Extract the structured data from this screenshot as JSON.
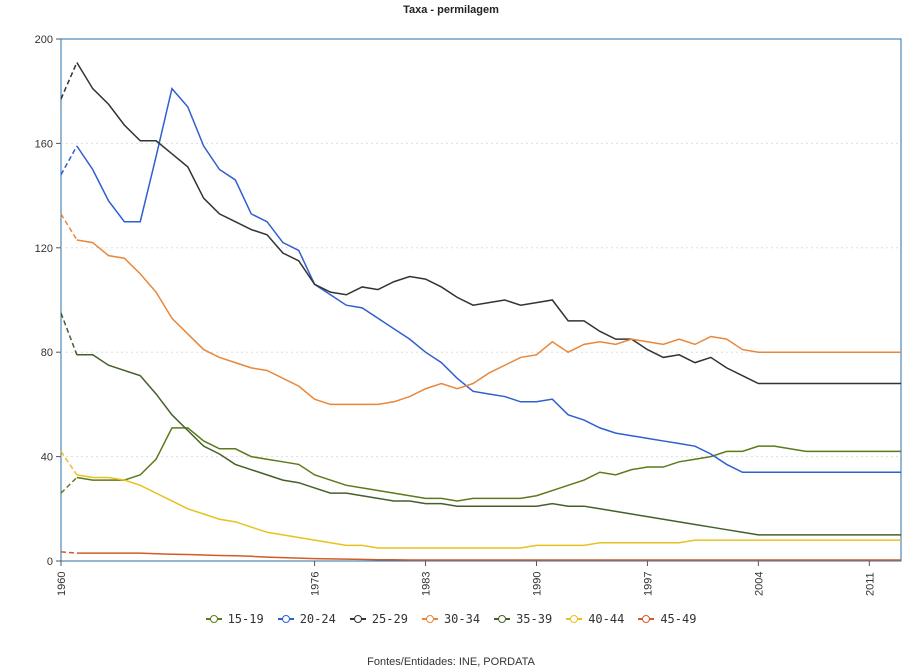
{
  "chart_data": {
    "type": "line",
    "title": "Taxa - permilagem",
    "source": "Fontes/Entidades: INE, PORDATA",
    "xlim": [
      1960,
      2013
    ],
    "ylim": [
      0,
      200
    ],
    "yticks": [
      0,
      40,
      80,
      120,
      160,
      200
    ],
    "xticks": [
      1960,
      1976,
      1983,
      1990,
      1997,
      2004,
      2011
    ],
    "xlabel": "",
    "ylabel": "",
    "grid": true,
    "legend_position": "bottom",
    "estimated_segment_end": 1961,
    "x": [
      1960,
      1961,
      1962,
      1963,
      1964,
      1965,
      1966,
      1967,
      1968,
      1969,
      1970,
      1971,
      1972,
      1973,
      1974,
      1975,
      1976,
      1977,
      1978,
      1979,
      1980,
      1981,
      1982,
      1983,
      1984,
      1985,
      1986,
      1987,
      1988,
      1989,
      1990,
      1991,
      1992,
      1993,
      1994,
      1995,
      1996,
      1997,
      1998,
      1999,
      2000,
      2001,
      2002,
      2003,
      2004,
      2005,
      2006,
      2007,
      2008,
      2009,
      2010,
      2011,
      2012,
      2013
    ],
    "series": [
      {
        "name": "15-19",
        "color": "#5c7a1a",
        "values": [
          26,
          32,
          31,
          31,
          31,
          33,
          39,
          51,
          51,
          46,
          43,
          43,
          40,
          39,
          38,
          37,
          33,
          31,
          29,
          28,
          27,
          26,
          25,
          24,
          24,
          23,
          24,
          24,
          24,
          24,
          25,
          27,
          29,
          31,
          34,
          33,
          35,
          36,
          36,
          38,
          39,
          40,
          42,
          42,
          44,
          44,
          43,
          42,
          42,
          42,
          42,
          42,
          42,
          42
        ]
      },
      {
        "name": "20-24",
        "color": "#2f5fd0",
        "values": [
          148,
          159,
          150,
          138,
          130,
          130,
          155,
          181,
          174,
          159,
          150,
          146,
          133,
          130,
          122,
          119,
          106,
          102,
          98,
          97,
          93,
          89,
          85,
          80,
          76,
          70,
          65,
          64,
          63,
          61,
          61,
          62,
          56,
          54,
          51,
          49,
          48,
          47,
          46,
          45,
          44,
          41,
          37,
          34,
          34,
          34,
          34,
          34,
          34,
          34,
          34,
          34,
          34,
          34
        ]
      },
      {
        "name": "25-29",
        "color": "#333333",
        "values": [
          177,
          191,
          181,
          175,
          167,
          161,
          161,
          156,
          151,
          139,
          133,
          130,
          127,
          125,
          118,
          115,
          106,
          103,
          102,
          105,
          104,
          107,
          109,
          108,
          105,
          101,
          98,
          99,
          100,
          98,
          99,
          100,
          92,
          92,
          88,
          85,
          85,
          81,
          78,
          79,
          76,
          78,
          74,
          71,
          68,
          68,
          68,
          68,
          68,
          68,
          68,
          68,
          68,
          68
        ]
      },
      {
        "name": "30-34",
        "color": "#e8873a",
        "values": [
          133,
          123,
          122,
          117,
          116,
          110,
          103,
          93,
          87,
          81,
          78,
          76,
          74,
          73,
          70,
          67,
          62,
          60,
          60,
          60,
          60,
          61,
          63,
          66,
          68,
          66,
          68,
          72,
          75,
          78,
          79,
          84,
          80,
          83,
          84,
          83,
          85,
          84,
          83,
          85,
          83,
          86,
          85,
          81,
          80,
          80,
          80,
          80,
          80,
          80,
          80,
          80,
          80,
          80
        ]
      },
      {
        "name": "35-39",
        "color": "#44602a",
        "values": [
          95,
          79,
          79,
          75,
          73,
          71,
          64,
          56,
          50,
          44,
          41,
          37,
          35,
          33,
          31,
          30,
          28,
          26,
          26,
          25,
          24,
          23,
          23,
          22,
          22,
          21,
          21,
          21,
          21,
          21,
          21,
          22,
          21,
          21,
          20,
          19,
          18,
          17,
          16,
          15,
          14,
          13,
          12,
          11,
          10,
          10,
          10,
          10,
          10,
          10,
          10,
          10,
          10,
          10
        ]
      },
      {
        "name": "40-44",
        "color": "#e6c21e",
        "values": [
          42,
          33,
          32,
          32,
          31,
          29,
          26,
          23,
          20,
          18,
          16,
          15,
          13,
          11,
          10,
          9,
          8,
          7,
          6,
          6,
          5,
          5,
          5,
          5,
          5,
          5,
          5,
          5,
          5,
          5,
          6,
          6,
          6,
          6,
          7,
          7,
          7,
          7,
          7,
          7,
          8,
          8,
          8,
          8,
          8,
          8,
          8,
          8,
          8,
          8,
          8,
          8,
          8,
          8
        ]
      },
      {
        "name": "45-49",
        "color": "#d45a2a",
        "values": [
          3.5,
          3,
          3,
          3,
          3,
          3,
          2.8,
          2.6,
          2.5,
          2.3,
          2.1,
          2,
          1.8,
          1.5,
          1.3,
          1.1,
          0.9,
          0.8,
          0.7,
          0.6,
          0.5,
          0.5,
          0.4,
          0.4,
          0.4,
          0.4,
          0.4,
          0.4,
          0.4,
          0.4,
          0.4,
          0.4,
          0.4,
          0.4,
          0.4,
          0.4,
          0.4,
          0.4,
          0.4,
          0.4,
          0.4,
          0.4,
          0.4,
          0.4,
          0.4,
          0.4,
          0.4,
          0.4,
          0.4,
          0.4,
          0.4,
          0.4,
          0.4,
          0.4
        ]
      }
    ]
  }
}
